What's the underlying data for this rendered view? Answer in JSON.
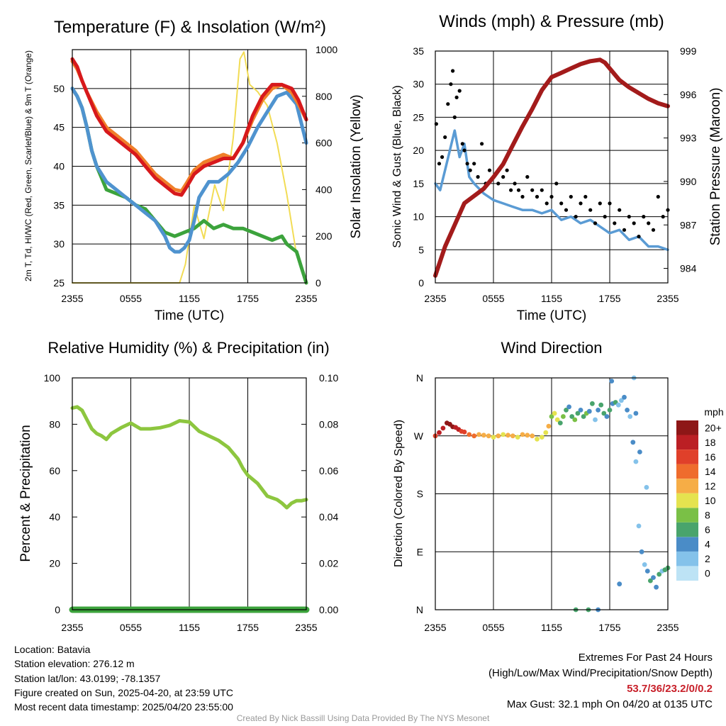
{
  "colors": {
    "temp": "#d7191c",
    "hiwc": "#3ca33c",
    "t9m": "#f07f2a",
    "dew": "#4f93cf",
    "insolation": "#f2dc55",
    "pressure": "#a31b1b",
    "gust": "#000000",
    "wind": "#5a9bd4",
    "rh": "#8dc63f",
    "precip": "#3ca33c",
    "accent_red": "#c8202a"
  },
  "chart_data": [
    {
      "type": "line",
      "title": "Temperature (F) & Insolation (W/m²)",
      "xlabel": "Time (UTC)",
      "ylabel": "2m T, Td, HI/WC (Red, Green, Scarlet/Blue) & 9m T (Orange)",
      "ylabel_right": "Solar Insolation (Yellow)",
      "x_ticks": [
        "2355",
        "0555",
        "1155",
        "1755",
        "2355"
      ],
      "y_ticks": [
        "25",
        "30",
        "35",
        "40",
        "45",
        "50"
      ],
      "y2_ticks": [
        "0",
        "200",
        "400",
        "600",
        "800",
        "1000"
      ],
      "xlim": [
        0,
        24
      ],
      "ylim": [
        25,
        55
      ],
      "y2lim": [
        0,
        1000
      ],
      "grid": true,
      "series": [
        {
          "key": "insolation",
          "axis": "right",
          "x": [
            0,
            11.0,
            11.6,
            12.5,
            13.5,
            14.6,
            15.5,
            16.5,
            17.2,
            17.6,
            18.2,
            19.0,
            20.0,
            21.0,
            22.0,
            23.0,
            24.0
          ],
          "y": [
            0,
            0,
            80,
            330,
            190,
            420,
            310,
            620,
            960,
            990,
            850,
            820,
            760,
            600,
            380,
            120,
            0
          ]
        },
        {
          "key": "t9m",
          "x": [
            0,
            0.5,
            1.0,
            1.5,
            2.5,
            3.5,
            4.5,
            5.5,
            6.5,
            7.5,
            8.5,
            9.5,
            10.5,
            11.2,
            11.8,
            12.5,
            13.5,
            14.5,
            15.5,
            16.5,
            17.5,
            18.5,
            19.5,
            20.5,
            21.5,
            22.5,
            23.2,
            24.0
          ],
          "y": [
            53.5,
            52.5,
            51,
            49.5,
            47,
            45,
            44,
            43,
            42,
            40.5,
            39,
            38,
            37,
            36.8,
            38,
            39.5,
            40.5,
            41,
            41.5,
            41,
            43,
            46,
            48.5,
            50,
            50.5,
            49.5,
            48,
            46
          ]
        },
        {
          "key": "temp",
          "x": [
            0,
            0.5,
            1.0,
            1.5,
            2.5,
            3.5,
            4.5,
            5.5,
            6.5,
            7.5,
            8.5,
            9.5,
            10.5,
            11.2,
            11.8,
            12.5,
            13.5,
            14.5,
            15.5,
            16.5,
            17.5,
            18.5,
            19.5,
            20.5,
            21.5,
            22.5,
            23.2,
            24.0
          ],
          "y": [
            53.8,
            52.8,
            51,
            49.5,
            46.5,
            44.5,
            43.5,
            42.5,
            41.5,
            40,
            38.5,
            37.5,
            36.5,
            36.3,
            37.5,
            39,
            40,
            40.5,
            41,
            41,
            43,
            46.5,
            49,
            50.5,
            50.5,
            50,
            48.5,
            46
          ]
        },
        {
          "key": "dew",
          "x": [
            0,
            0.5,
            1.0,
            1.5,
            2.0,
            2.5,
            3.0,
            3.5,
            4.5,
            5.5,
            6.5,
            7.5,
            8.5,
            9.5,
            10.0,
            10.5,
            11.0,
            11.5,
            12.0,
            12.5,
            13.0,
            14.0,
            15.0,
            16.0,
            17.0,
            18.0,
            19.0,
            20.0,
            21.0,
            22.0,
            23.0,
            24.0
          ],
          "y": [
            50,
            49,
            47.5,
            45,
            42,
            40,
            39,
            38,
            37,
            36,
            35,
            34,
            33,
            31,
            29.5,
            29,
            29,
            29.5,
            30.5,
            33,
            36,
            38,
            38,
            39,
            40.5,
            42.5,
            45,
            47,
            49,
            49.5,
            48,
            43
          ]
        },
        {
          "key": "hiwc",
          "x": [
            0,
            0.5,
            1.0,
            1.5,
            2.0,
            2.5,
            3.0,
            3.5,
            4.5,
            5.5,
            6.5,
            7.5,
            8.5,
            9.5,
            10.5,
            11.5,
            12.5,
            13.5,
            14.5,
            15.5,
            16.5,
            17.5,
            18.5,
            19.5,
            20.5,
            21.5,
            22.0,
            22.5,
            23.0,
            23.5,
            24.0
          ],
          "y": [
            50,
            49,
            47.5,
            45,
            42,
            40,
            38.5,
            37,
            36.5,
            36,
            35,
            34.5,
            33,
            31.5,
            31,
            31.5,
            32,
            33,
            32,
            32.5,
            32,
            32,
            31.5,
            31,
            30.5,
            31,
            30,
            29.5,
            29,
            27,
            25
          ]
        }
      ]
    },
    {
      "type": "scatter",
      "title": "Winds (mph) & Pressure (mb)",
      "xlabel": "Time (UTC)",
      "ylabel": "Sonic Wind & Gust (Blue, Black)",
      "ylabel_right": "Station Pressure (Maroon)",
      "x_ticks": [
        "2355",
        "0555",
        "1155",
        "1755",
        "2355"
      ],
      "y_ticks": [
        "0",
        "5",
        "10",
        "15",
        "20",
        "25",
        "30",
        "35"
      ],
      "y2_ticks": [
        "984",
        "987",
        "990",
        "993",
        "996",
        "999"
      ],
      "xlim": [
        0,
        24
      ],
      "ylim": [
        0,
        35
      ],
      "y2lim": [
        983,
        999
      ],
      "grid": true,
      "pressure": {
        "x": [
          0,
          1,
          2,
          3,
          4,
          5,
          6,
          7,
          8,
          9,
          10,
          11,
          12,
          13,
          14,
          15,
          16,
          17,
          17.5,
          18,
          18.5,
          19,
          20,
          21,
          22,
          23,
          24
        ],
        "y": [
          983.5,
          985.5,
          987,
          988.5,
          989,
          989.5,
          990.3,
          991.2,
          992.5,
          993.8,
          995,
          996.3,
          997.2,
          997.5,
          997.8,
          998.1,
          998.3,
          998.4,
          998.2,
          997.8,
          997.4,
          997,
          996.5,
          996.1,
          995.7,
          995.4,
          995.2
        ]
      },
      "wind": {
        "x": [
          0,
          0.5,
          1.0,
          1.5,
          2.0,
          2.5,
          3.0,
          3.5,
          4.0,
          5.0,
          6.0,
          7.0,
          8.0,
          9.0,
          10.0,
          11.0,
          12.0,
          13.0,
          14.0,
          15.0,
          16.0,
          17.0,
          18.0,
          19.0,
          20.0,
          21.0,
          22.0,
          23.0,
          24.0
        ],
        "y": [
          15,
          14,
          17,
          20,
          23,
          19,
          21,
          16,
          15,
          13.5,
          12.5,
          12,
          11.5,
          11,
          11,
          10.5,
          11,
          9.5,
          10,
          9,
          9.5,
          8.5,
          7.5,
          8,
          6.5,
          7,
          5.5,
          5.5,
          5
        ]
      },
      "gust": {
        "x": [
          0.1,
          0.4,
          0.7,
          1.0,
          1.3,
          1.6,
          1.8,
          2.0,
          2.2,
          2.5,
          2.8,
          3.0,
          3.3,
          3.6,
          4.0,
          4.4,
          4.8,
          5.2,
          5.6,
          6.0,
          6.5,
          7.0,
          7.4,
          7.8,
          8.2,
          8.6,
          9.0,
          9.5,
          10.0,
          10.5,
          11.0,
          11.5,
          12.0,
          12.5,
          13.0,
          13.5,
          14.0,
          14.5,
          15.0,
          15.5,
          16.0,
          16.5,
          17.0,
          17.5,
          18.0,
          18.5,
          19.0,
          19.5,
          20.0,
          20.5,
          21.0,
          21.5,
          22.0,
          22.5,
          23.0,
          23.5,
          24.0
        ],
        "y": [
          24,
          18,
          19,
          22,
          27,
          30,
          32,
          25,
          28,
          29,
          21,
          20,
          18,
          17,
          18,
          16,
          21,
          15,
          17,
          16,
          15,
          16,
          17,
          14,
          15,
          14,
          13,
          16,
          14,
          13,
          14,
          12,
          13,
          15,
          12,
          11,
          13,
          10,
          12,
          13,
          11,
          9,
          12,
          10,
          12,
          9,
          11,
          8,
          10,
          9,
          7,
          10,
          9,
          8,
          13,
          10,
          11
        ]
      }
    },
    {
      "type": "line",
      "title": "Relative Humidity (%) & Precipitation (in)",
      "ylabel": "Percent & Precipitation",
      "x_ticks": [
        "2355",
        "0555",
        "1155",
        "1755",
        "2355"
      ],
      "y_ticks": [
        "0",
        "20",
        "40",
        "60",
        "80",
        "100"
      ],
      "y2_ticks": [
        "0.00",
        "0.02",
        "0.04",
        "0.06",
        "0.08",
        "0.10"
      ],
      "xlim": [
        0,
        24
      ],
      "ylim": [
        0,
        100
      ],
      "y2lim": [
        0,
        0.1
      ],
      "grid": true,
      "series": [
        {
          "key": "rh",
          "x": [
            0,
            0.5,
            1.0,
            1.5,
            2.0,
            2.5,
            3.0,
            3.5,
            4.0,
            5.0,
            6.0,
            7.0,
            8.0,
            9.0,
            10.0,
            11.0,
            12.0,
            13.0,
            14.0,
            15.0,
            16.0,
            17.0,
            17.5,
            18.0,
            19.0,
            20.0,
            21.0,
            21.5,
            22.0,
            22.5,
            23.0,
            23.5,
            24.0
          ],
          "y": [
            87,
            87.5,
            86,
            82,
            78,
            76,
            75,
            73.5,
            76,
            78.5,
            80.5,
            78,
            78,
            78.5,
            79.5,
            81.5,
            81,
            77,
            75,
            73,
            70,
            65,
            61,
            58,
            54.5,
            49,
            47.5,
            46,
            44,
            46,
            47,
            47,
            47.5
          ]
        },
        {
          "key": "precip",
          "axis": "right",
          "x": [
            0,
            24
          ],
          "y": [
            0,
            0
          ]
        }
      ]
    },
    {
      "type": "scatter",
      "title": "Wind Direction",
      "ylabel": "Direction (Colored By Speed)",
      "x_ticks": [
        "2355",
        "0555",
        "1155",
        "1755",
        "2355"
      ],
      "y_ticks": [
        "N",
        "E",
        "S",
        "W",
        "N"
      ],
      "xlim": [
        0,
        24
      ],
      "ylim": [
        0,
        360
      ],
      "grid": true,
      "colorbar": {
        "title": "mph",
        "labels": [
          "0",
          "2",
          "4",
          "6",
          "8",
          "10",
          "12",
          "14",
          "16",
          "18",
          "20+"
        ],
        "colors": [
          "#bde3f5",
          "#84c2ea",
          "#4a8cc7",
          "#49a46c",
          "#7ac046",
          "#e5e34f",
          "#f6ad46",
          "#ef6c2d",
          "#e0402a",
          "#bb1f24",
          "#8e1717"
        ]
      },
      "points": {
        "x": [
          0.0,
          0.4,
          0.8,
          1.2,
          1.5,
          1.8,
          2.1,
          2.4,
          2.7,
          3.0,
          3.5,
          4.0,
          4.5,
          5.0,
          5.5,
          6.0,
          6.5,
          7.0,
          7.5,
          8.0,
          8.5,
          9.0,
          9.5,
          10.0,
          10.5,
          11.0,
          11.4,
          11.7,
          12.0,
          12.3,
          12.6,
          12.9,
          13.2,
          13.5,
          13.8,
          14.1,
          14.4,
          14.7,
          15.0,
          15.3,
          15.6,
          15.9,
          16.2,
          16.5,
          16.8,
          17.1,
          17.4,
          17.7,
          18.0,
          18.3,
          18.6,
          18.9,
          19.2,
          19.5,
          19.8,
          20.1,
          20.4,
          20.7,
          21.0,
          21.3,
          21.6,
          21.9,
          22.2,
          22.5,
          22.8,
          23.1,
          23.4,
          23.7,
          24.0,
          14.5,
          15.8,
          16.8,
          18.2,
          20.5,
          20.7,
          21.1,
          21.8,
          19.0
        ],
        "dir": [
          270,
          275,
          282,
          290,
          288,
          284,
          283,
          280,
          277,
          276,
          272,
          270,
          272,
          271,
          270,
          268,
          270,
          272,
          271,
          270,
          268,
          272,
          271,
          270,
          265,
          268,
          275,
          285,
          300,
          305,
          295,
          290,
          300,
          310,
          315,
          300,
          295,
          305,
          310,
          300,
          305,
          308,
          320,
          295,
          310,
          318,
          305,
          300,
          310,
          320,
          322,
          318,
          325,
          330,
          310,
          300,
          260,
          230,
          130,
          90,
          70,
          60,
          45,
          50,
          35,
          55,
          60,
          62,
          65,
          0,
          0,
          0,
          355,
          360,
          305,
          245,
          190,
          40
        ],
        "speed": [
          17,
          18,
          19,
          20,
          20,
          20,
          19,
          18,
          17,
          16,
          15,
          14,
          13,
          12,
          12,
          11,
          12,
          11,
          12,
          12,
          11,
          12,
          13,
          12,
          11,
          10,
          11,
          12,
          9,
          10,
          11,
          7,
          8,
          6,
          5,
          6,
          8,
          7,
          5,
          6,
          8,
          4,
          6,
          3,
          5,
          7,
          6,
          4,
          6,
          5,
          7,
          3,
          2,
          4,
          5,
          3,
          4,
          3,
          2,
          4,
          3,
          5,
          6,
          4,
          5,
          6,
          3,
          7,
          6,
          7,
          6,
          5,
          4,
          3,
          4,
          4,
          2,
          4
        ]
      }
    }
  ],
  "footer": {
    "location": "Location: Batavia",
    "elevation": "Station elevation: 276.12 m",
    "latlon": "Station lat/lon: 43.0199; -78.1357",
    "created": "Figure created on Sun, 2025-04-20, at 23:59 UTC",
    "recent": "Most recent data timestamp: 2025/04/20 23:55:00",
    "extremes_title": "Extremes For Past 24 Hours",
    "extremes_sub": "(High/Low/Max Wind/Precipitation/Snow Depth)",
    "extremes_values": "53.7/36/23.2/0/0.2",
    "max_gust": "Max Gust: 32.1 mph On 04/20 at 0135 UTC",
    "credit": "Created By Nick Bassill Using Data Provided By The NYS Mesonet"
  }
}
